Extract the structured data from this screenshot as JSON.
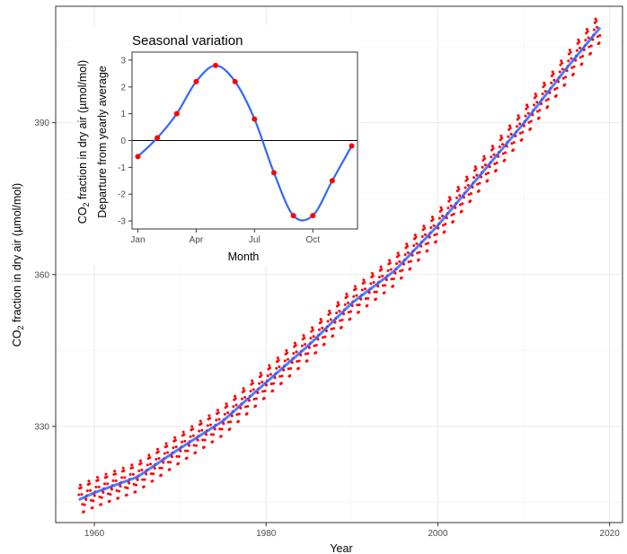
{
  "chart_data": [
    {
      "type": "scatter",
      "role": "main",
      "title": "",
      "xlabel": "Year",
      "ylabel_prefix": "CO",
      "ylabel_sub": "2",
      "ylabel_suffix": " fraction in dry air (µmol/mol)",
      "xlim": [
        1955.5,
        2021.5
      ],
      "ylim": [
        311,
        413
      ],
      "xticks": [
        1960,
        1980,
        2000,
        2020
      ],
      "xtick_labels": [
        "1960",
        "1980",
        "2000",
        "2020"
      ],
      "yticks": [
        330,
        360,
        390
      ],
      "ytick_labels": [
        "330",
        "360",
        "390"
      ],
      "grid": true,
      "legend": "none",
      "series": [
        {
          "kind": "monthly-points",
          "color": "#ff0000",
          "x_range": [
            1958.2,
            2018.9
          ],
          "seasonal_amplitude": 3.3
        },
        {
          "kind": "smoothed-trend",
          "color": "#3366ff",
          "x": [
            1958.2,
            1960,
            1965,
            1970,
            1975,
            1980,
            1985,
            1990,
            1995,
            2000,
            2005,
            2010,
            2015,
            2018.9
          ],
          "y": [
            315.5,
            316.9,
            320.0,
            325.7,
            331.1,
            338.7,
            346.1,
            354.4,
            360.8,
            369.7,
            379.8,
            389.9,
            400.8,
            408.8
          ]
        }
      ],
      "colors": {
        "points": "#ff0000",
        "trend": "#3366ff"
      }
    },
    {
      "type": "line",
      "role": "inset",
      "title": "Seasonal variation",
      "xlabel": "Month",
      "ylabel_line1_prefix": "CO",
      "ylabel_line1_sub": "2",
      "ylabel_line1_suffix": " fraction in dry air (µmol/mol)",
      "ylabel_line2": "Departure from yearly average",
      "xlim": [
        0.7,
        12.3
      ],
      "ylim": [
        -3.3,
        3.3
      ],
      "xticks": [
        1,
        4,
        7,
        10
      ],
      "xtick_labels": [
        "Jan",
        "Apr",
        "Jul",
        "Oct"
      ],
      "yticks": [
        -3,
        -2,
        -1,
        0,
        1,
        2,
        3
      ],
      "ytick_labels": [
        "-3",
        "-2",
        "-1",
        "0",
        "1",
        "2",
        "3"
      ],
      "grid": false,
      "zero_line": true,
      "x": [
        1,
        2,
        3,
        4,
        5,
        6,
        7,
        8,
        9,
        10,
        11,
        12
      ],
      "values": [
        -0.6,
        0.1,
        1.0,
        2.2,
        2.8,
        2.2,
        0.8,
        -1.2,
        -2.8,
        -2.8,
        -1.5,
        -0.2
      ],
      "colors": {
        "points": "#ff0000",
        "curve": "#3366ff",
        "zero_line": "#000000"
      }
    }
  ]
}
